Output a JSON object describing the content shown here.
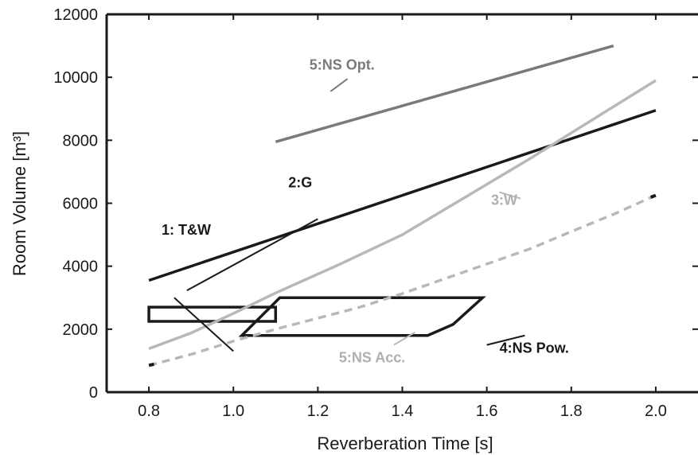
{
  "chart_data": {
    "type": "line",
    "xlabel": "Reverberation Time [s]",
    "ylabel": "Room Volume [m³]",
    "xlim": [
      0.7,
      2.1
    ],
    "ylim": [
      0,
      12000
    ],
    "xticks": [
      0.8,
      1.0,
      1.2,
      1.4,
      1.6,
      1.8,
      2.0
    ],
    "xtick_labels": [
      "0.8",
      "1.0",
      "1.2",
      "1.4",
      "1.6",
      "1.8",
      "2.0"
    ],
    "yticks": [
      0,
      2000,
      4000,
      6000,
      8000,
      10000,
      12000
    ],
    "ytick_labels": [
      "0",
      "2000",
      "4000",
      "6000",
      "8000",
      "10000",
      "12000"
    ],
    "grid": false,
    "series": [
      {
        "name": "1: T&W",
        "kind": "region",
        "color": "#1a1a1a",
        "points": [
          [
            0.8,
            2700
          ],
          [
            1.1,
            2700
          ],
          [
            1.1,
            2250
          ],
          [
            0.8,
            2250
          ]
        ],
        "label_at": [
          0.83,
          5000
        ],
        "leader": [
          [
            0.86,
            3000
          ],
          [
            1.0,
            1300
          ]
        ]
      },
      {
        "name": "2:G",
        "kind": "line",
        "color": "#1a1a1a",
        "points": [
          [
            0.8,
            3550
          ],
          [
            2.0,
            8950
          ]
        ],
        "label_at": [
          1.13,
          6500
        ],
        "leader": [
          [
            1.2,
            5500
          ],
          [
            0.89,
            3230
          ]
        ]
      },
      {
        "name": "3:W",
        "kind": "curve",
        "color": "#b8b8b8",
        "points": [
          [
            0.8,
            1380
          ],
          [
            0.9,
            1880
          ],
          [
            1.0,
            2500
          ],
          [
            1.1,
            3150
          ],
          [
            1.25,
            4050
          ],
          [
            1.4,
            5000
          ],
          [
            1.55,
            6200
          ],
          [
            1.7,
            7400
          ],
          [
            1.85,
            8650
          ],
          [
            2.0,
            9900
          ]
        ],
        "label_at": [
          1.61,
          5950
        ],
        "leader": [
          [
            1.63,
            6350
          ],
          [
            1.68,
            6150
          ]
        ]
      },
      {
        "name": "4:NS Pow.",
        "kind": "region",
        "color": "#1a1a1a",
        "points": [
          [
            1.02,
            1800
          ],
          [
            1.46,
            1800
          ],
          [
            1.52,
            2150
          ],
          [
            1.59,
            3000
          ],
          [
            1.11,
            3000
          ]
        ],
        "label_at": [
          1.63,
          1250
        ],
        "leader": [
          [
            1.6,
            1500
          ],
          [
            1.69,
            1800
          ]
        ]
      },
      {
        "name": "5:NS Acc.",
        "kind": "dashed",
        "color": "#b8b8b8",
        "points": [
          [
            0.8,
            850
          ],
          [
            0.9,
            1200
          ],
          [
            1.0,
            1620
          ],
          [
            1.1,
            2000
          ],
          [
            1.2,
            2350
          ],
          [
            1.3,
            2700
          ],
          [
            1.4,
            3130
          ],
          [
            1.5,
            3600
          ],
          [
            1.6,
            4070
          ],
          [
            1.7,
            4540
          ],
          [
            1.8,
            5100
          ],
          [
            1.9,
            5650
          ],
          [
            2.0,
            6250
          ]
        ],
        "label_at": [
          1.25,
          950
        ],
        "leader": [
          [
            1.38,
            1500
          ],
          [
            1.43,
            1900
          ]
        ]
      },
      {
        "name": "5:NS Opt.",
        "kind": "line",
        "color": "#7a7a7a",
        "points": [
          [
            1.1,
            7950
          ],
          [
            1.9,
            11000
          ]
        ],
        "label_at": [
          1.18,
          10250
        ],
        "leader": [
          [
            1.23,
            9550
          ],
          [
            1.27,
            9950
          ]
        ]
      }
    ]
  }
}
